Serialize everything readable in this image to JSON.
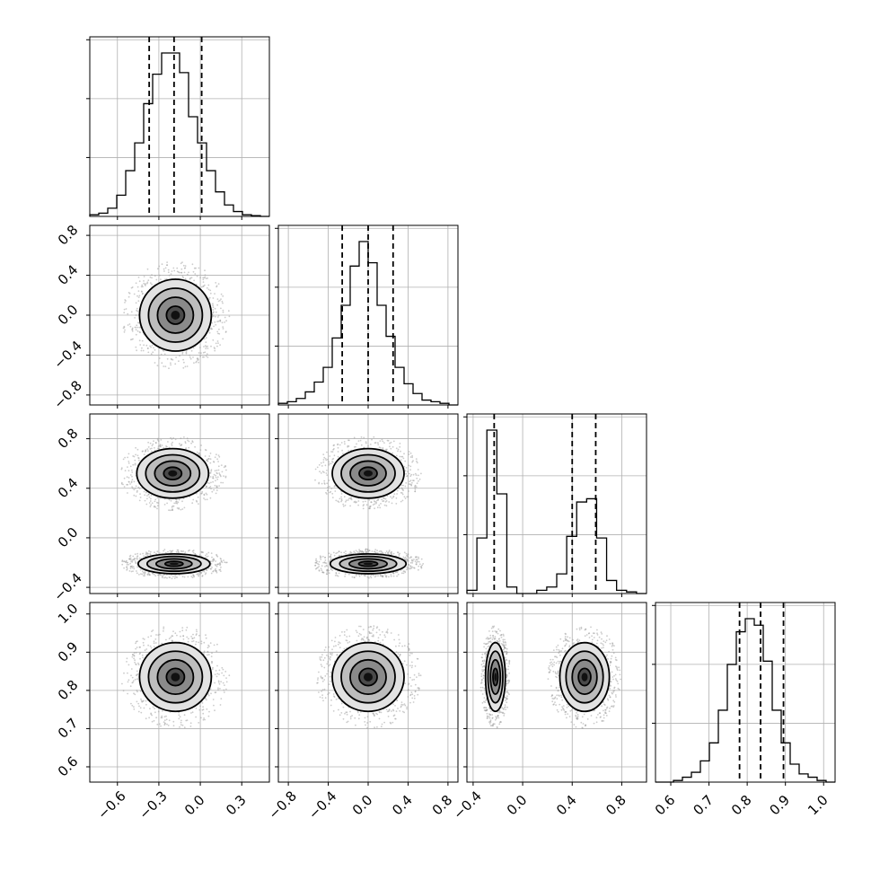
{
  "chart_data": {
    "type": "corner",
    "parameters": [
      {
        "range": [
          -0.8,
          0.5
        ],
        "ticks": [
          -0.6,
          -0.3,
          0.0,
          0.3
        ],
        "tick_labels": [
          "−0.6",
          "−0.3",
          "0.0",
          "0.3"
        ],
        "quantiles": [
          -0.37,
          -0.19,
          0.01
        ],
        "hist": [
          0.01,
          0.02,
          0.05,
          0.13,
          0.28,
          0.45,
          0.69,
          0.87,
          1.0,
          1.0,
          0.88,
          0.61,
          0.45,
          0.28,
          0.15,
          0.07,
          0.03,
          0.01,
          0.005,
          0.0
        ]
      },
      {
        "range": [
          -0.9,
          0.9
        ],
        "ticks": [
          -0.8,
          -0.4,
          0.0,
          0.4,
          0.8
        ],
        "tick_labels": [
          "−0.8",
          "−0.4",
          "0.0",
          "0.4",
          "0.8"
        ],
        "quantiles": [
          -0.26,
          0.0,
          0.25
        ],
        "hist": [
          0.01,
          0.02,
          0.04,
          0.08,
          0.14,
          0.23,
          0.41,
          0.61,
          0.85,
          1.0,
          0.87,
          0.61,
          0.42,
          0.23,
          0.13,
          0.07,
          0.03,
          0.02,
          0.01,
          0.0
        ]
      },
      {
        "range": [
          -0.45,
          1.0
        ],
        "ticks": [
          -0.4,
          0.0,
          0.4,
          0.8
        ],
        "tick_labels": [
          "−0.4",
          "0.0",
          "0.4",
          "0.8"
        ],
        "quantiles": [
          -0.23,
          0.4,
          0.59
        ],
        "hist": [
          0.02,
          0.34,
          1.0,
          0.61,
          0.04,
          0.0,
          0.0,
          0.02,
          0.04,
          0.12,
          0.35,
          0.56,
          0.58,
          0.34,
          0.08,
          0.02,
          0.01,
          0.0
        ]
      },
      {
        "range": [
          0.56,
          1.03
        ],
        "ticks": [
          0.6,
          0.7,
          0.8,
          0.9,
          1.0
        ],
        "tick_labels": [
          "0.6",
          "0.7",
          "0.8",
          "0.9",
          "1.0"
        ],
        "quantiles": [
          0.78,
          0.835,
          0.895
        ],
        "hist": [
          0.0,
          0.0,
          0.01,
          0.03,
          0.06,
          0.13,
          0.24,
          0.44,
          0.72,
          0.92,
          1.0,
          0.96,
          0.74,
          0.44,
          0.24,
          0.11,
          0.05,
          0.03,
          0.01,
          0.0
        ]
      }
    ],
    "hist_yticks": 3,
    "blobs": {
      "1_0": [
        {
          "cx": -0.18,
          "cy": 0.0,
          "sx": 0.13,
          "sy": 0.18
        }
      ],
      "2_0": [
        {
          "cx": -0.2,
          "cy": 0.52,
          "sx": 0.13,
          "sy": 0.1
        },
        {
          "cx": -0.19,
          "cy": -0.21,
          "sx": 0.13,
          "sy": 0.04
        }
      ],
      "2_1": [
        {
          "cx": 0.0,
          "cy": 0.52,
          "sx": 0.18,
          "sy": 0.1
        },
        {
          "cx": 0.0,
          "cy": -0.21,
          "sx": 0.19,
          "sy": 0.04
        }
      ],
      "3_0": [
        {
          "cx": -0.18,
          "cy": 0.835,
          "sx": 0.13,
          "sy": 0.045
        }
      ],
      "3_1": [
        {
          "cx": 0.0,
          "cy": 0.835,
          "sx": 0.18,
          "sy": 0.045
        }
      ],
      "3_2": [
        {
          "cx": -0.22,
          "cy": 0.835,
          "sx": 0.04,
          "sy": 0.045
        },
        {
          "cx": 0.5,
          "cy": 0.835,
          "sx": 0.1,
          "sy": 0.045
        }
      ]
    },
    "contour_levels_sigma": [
      0.5,
      1.0,
      1.5,
      2.0
    ],
    "grid": true,
    "histogram_style": "step",
    "quantile_line_style": "dashed"
  }
}
